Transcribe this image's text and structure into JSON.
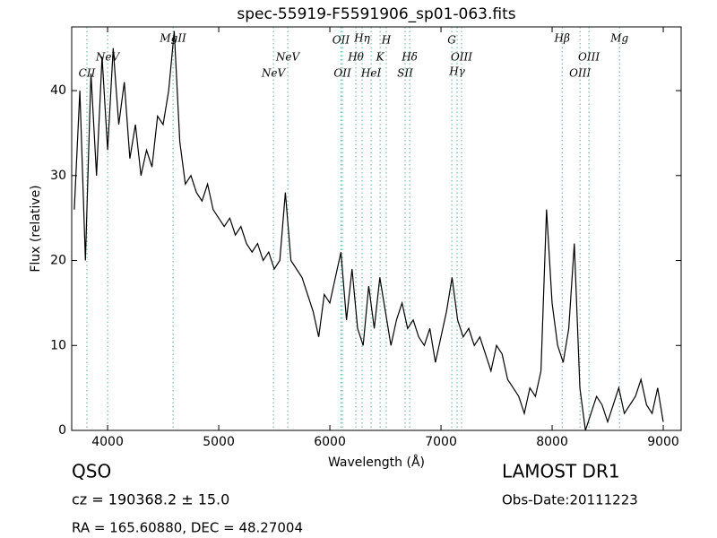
{
  "chart_data": {
    "type": "line",
    "title": "spec-55919-F5591906_sp01-063.fits",
    "x_label": "Wavelength (Å)",
    "y_label": "Flux (relative)",
    "xlim": [
      3677,
      9161
    ],
    "ylim": [
      0,
      47.5
    ],
    "xticks": [
      4000,
      5000,
      6000,
      7000,
      8000,
      9000
    ],
    "yticks": [
      0,
      10,
      20,
      30,
      40
    ],
    "grid": false,
    "series": [
      {
        "color": "#000000",
        "x": [
          3700,
          3750,
          3800,
          3850,
          3900,
          3950,
          4000,
          4050,
          4100,
          4150,
          4200,
          4250,
          4300,
          4350,
          4400,
          4450,
          4500,
          4550,
          4600,
          4650,
          4700,
          4750,
          4800,
          4850,
          4900,
          4950,
          5000,
          5050,
          5100,
          5150,
          5200,
          5250,
          5300,
          5350,
          5400,
          5450,
          5500,
          5550,
          5600,
          5650,
          5700,
          5750,
          5800,
          5850,
          5900,
          5950,
          6000,
          6050,
          6100,
          6150,
          6200,
          6250,
          6300,
          6350,
          6400,
          6450,
          6500,
          6550,
          6600,
          6650,
          6700,
          6750,
          6800,
          6850,
          6900,
          6950,
          7000,
          7050,
          7100,
          7150,
          7200,
          7250,
          7300,
          7350,
          7400,
          7450,
          7500,
          7550,
          7600,
          7650,
          7700,
          7750,
          7800,
          7850,
          7900,
          7950,
          8000,
          8050,
          8100,
          8150,
          8200,
          8250,
          8300,
          8350,
          8400,
          8450,
          8500,
          8550,
          8600,
          8650,
          8700,
          8750,
          8800,
          8850,
          8900,
          8950,
          9000
        ],
        "values": [
          26,
          40,
          20,
          42,
          30,
          44,
          33,
          45,
          36,
          41,
          32,
          36,
          30,
          33,
          31,
          37,
          36,
          40,
          47,
          34,
          29,
          30,
          28,
          27,
          29,
          26,
          25,
          24,
          25,
          23,
          24,
          22,
          21,
          22,
          20,
          21,
          19,
          20,
          28,
          20,
          19,
          18,
          16,
          14,
          11,
          16,
          15,
          18,
          21,
          13,
          19,
          12,
          10,
          17,
          12,
          18,
          14,
          10,
          13,
          15,
          12,
          13,
          11,
          10,
          12,
          8,
          11,
          14,
          18,
          13,
          11,
          12,
          10,
          11,
          9,
          7,
          10,
          9,
          6,
          5,
          4,
          2,
          5,
          4,
          7,
          26,
          15,
          10,
          8,
          12,
          22,
          5,
          0,
          2,
          4,
          3,
          1,
          3,
          5,
          2,
          3,
          4,
          6,
          3,
          2,
          5,
          1
        ]
      }
    ],
    "lines_color": "#5fae8f",
    "lines": [
      {
        "label": "CII",
        "wavelength": 3814
      },
      {
        "label": "NeV",
        "wavelength": 4000
      },
      {
        "label": "MgII",
        "wavelength": 4589
      },
      {
        "label": "NeV",
        "wavelength": 5492
      },
      {
        "label": "NeV",
        "wavelength": 5621
      },
      {
        "label": "OII",
        "wavelength": 6100
      },
      {
        "label": "OII",
        "wavelength": 6113
      },
      {
        "label": "Hθ",
        "wavelength": 6234
      },
      {
        "label": "Hη",
        "wavelength": 6290
      },
      {
        "label": "HeI",
        "wavelength": 6371
      },
      {
        "label": "K",
        "wavelength": 6452
      },
      {
        "label": "H",
        "wavelength": 6508
      },
      {
        "label": "SII",
        "wavelength": 6677
      },
      {
        "label": "Hδ",
        "wavelength": 6718
      },
      {
        "label": "G",
        "wavelength": 7097
      },
      {
        "label": "Hγ",
        "wavelength": 7145
      },
      {
        "label": "OIII",
        "wavelength": 7185
      },
      {
        "label": "Hβ",
        "wavelength": 8090
      },
      {
        "label": "OIII",
        "wavelength": 8251
      },
      {
        "label": "OIII",
        "wavelength": 8331
      },
      {
        "label": "Mg",
        "wavelength": 8606
      }
    ],
    "annotations": {
      "class": "QSO",
      "cz": "cz = 190368.2 ± 15.0",
      "coords": "RA = 165.60880, DEC = 48.27004",
      "survey": "LAMOST DR1",
      "obs_date": "Obs-Date:20111223"
    }
  }
}
